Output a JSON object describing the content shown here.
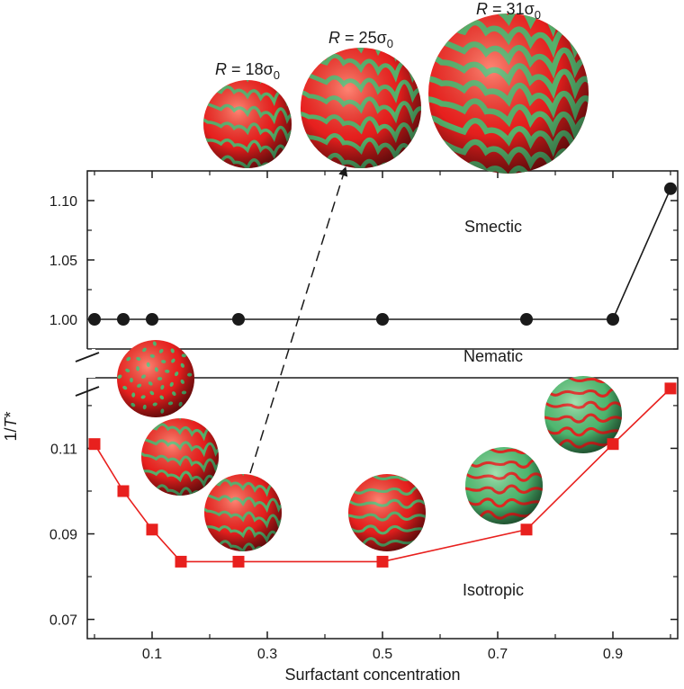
{
  "chart_data": {
    "type": "line",
    "xlabel": "Surfactant concentration",
    "ylabel": "1/T*",
    "x_ticks": [
      "0.1",
      "0.3",
      "0.5",
      "0.7",
      "0.9"
    ],
    "xlim": [
      0,
      1
    ],
    "upper_panel": {
      "y_ticks": [
        "1.00",
        "1.05",
        "1.10"
      ],
      "ylim": [
        0.975,
        1.125
      ],
      "series": [
        {
          "color": "#1a1a1a",
          "marker": "circle",
          "x": [
            0,
            0.05,
            0.1,
            0.25,
            0.5,
            0.75,
            0.9,
            1.0
          ],
          "y": [
            1.0,
            1.0,
            1.0,
            1.0,
            1.0,
            1.0,
            1.0,
            1.11
          ]
        }
      ]
    },
    "lower_panel": {
      "y_ticks": [
        "0.07",
        "0.09",
        "0.11"
      ],
      "ylim": [
        0.0655,
        0.1265
      ],
      "series": [
        {
          "color": "#e8201e",
          "marker": "square",
          "x": [
            0,
            0.05,
            0.1,
            0.15,
            0.25,
            0.5,
            0.75,
            0.9,
            1.0
          ],
          "y": [
            0.111,
            0.1,
            0.091,
            0.0835,
            0.0835,
            0.0835,
            0.091,
            0.111,
            0.124
          ]
        }
      ]
    },
    "region_labels": [
      "Smectic",
      "Nematic",
      "Isotropic"
    ],
    "sphere_labels": [
      {
        "prefix": "R",
        "text": " = 18σ",
        "sub": "0"
      },
      {
        "prefix": "R",
        "text": " = 25σ",
        "sub": "0"
      },
      {
        "prefix": "R",
        "text": " = 31σ",
        "sub": "0"
      }
    ],
    "colors": {
      "red": "#e8201e",
      "green": "#4fb870",
      "black": "#1a1a1a"
    }
  }
}
